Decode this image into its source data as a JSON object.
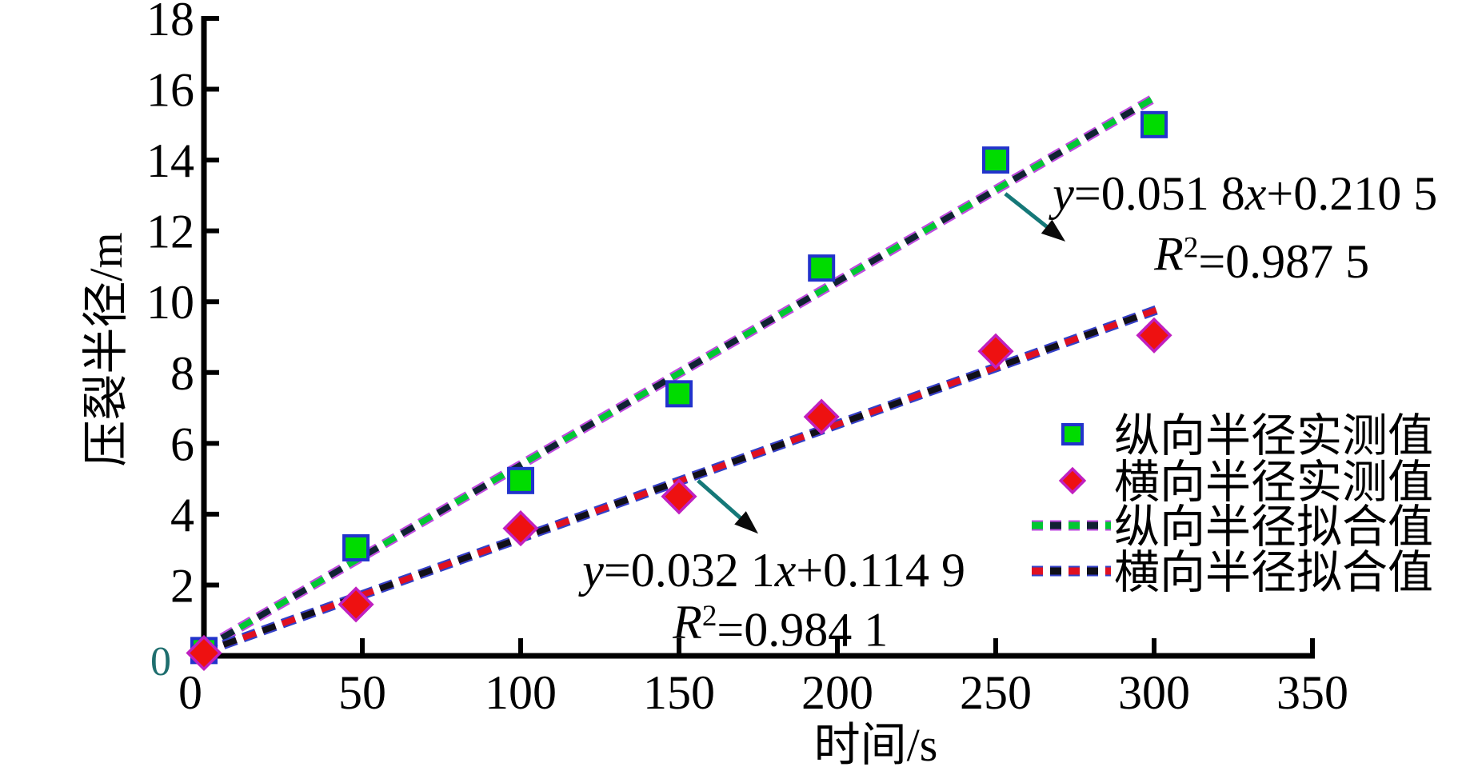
{
  "figure": {
    "background": "#ffffff",
    "axis_color": "#000000",
    "tick_label_color": "#000000",
    "y_zero_label_color": "#1e6e6e",
    "arrow_color": "#157878",
    "arrowhead_color": "#0a0a0a"
  },
  "chart_data": {
    "type": "scatter",
    "title": "",
    "xlabel": "时间/s",
    "ylabel": "压裂半径/m",
    "xlim": [
      0,
      350
    ],
    "ylim": [
      0,
      18
    ],
    "xticks": [
      0,
      50,
      100,
      150,
      200,
      250,
      300,
      350
    ],
    "yticks": [
      0,
      2,
      4,
      6,
      8,
      10,
      12,
      14,
      16,
      18
    ],
    "grid": false,
    "legend_position": "right-middle",
    "series": [
      {
        "id": "longitudinal-measured",
        "name": "纵向半径实测值",
        "kind": "scatter",
        "marker": "square",
        "fill": "#00dc00",
        "edge": "#2233cc",
        "points": [
          [
            0,
            0.15
          ],
          [
            48,
            3.05
          ],
          [
            100,
            4.95
          ],
          [
            150,
            7.4
          ],
          [
            195,
            10.95
          ],
          [
            250,
            14.0
          ],
          [
            300,
            15.0
          ]
        ]
      },
      {
        "id": "transverse-measured",
        "name": "横向半径实测值",
        "kind": "scatter",
        "marker": "diamond",
        "fill": "#ee1111",
        "edge": "#c020c0",
        "points": [
          [
            0,
            0.08
          ],
          [
            48,
            1.45
          ],
          [
            100,
            3.6
          ],
          [
            150,
            4.5
          ],
          [
            195,
            6.75
          ],
          [
            250,
            8.6
          ],
          [
            300,
            9.05
          ]
        ]
      },
      {
        "id": "longitudinal-fit",
        "name": "纵向半径拟合值",
        "kind": "fit-line",
        "color": "#00c832",
        "accent": "#112233",
        "halo": "#c04ae0",
        "slope": 0.0518,
        "intercept": 0.2105,
        "x_start": 0,
        "x_end": 300
      },
      {
        "id": "transverse-fit",
        "name": "横向半径拟合值",
        "kind": "fit-line",
        "color": "#e01020",
        "accent": "#101018",
        "halo": "#3340c8",
        "slope": 0.0321,
        "intercept": 0.1149,
        "x_start": 0,
        "x_end": 302
      }
    ],
    "annotations": [
      {
        "id": "1",
        "equation": "y=0.051 8x+0.210 5",
        "r_squared": "R²=0.987 5",
        "eq_anchor": {
          "x": 268,
          "y": 12.6,
          "align": "start"
        },
        "r2_anchor": {
          "x": 334,
          "y": 10.9,
          "align": "middle"
        },
        "arrow": {
          "x1": 253,
          "y1": 13.05,
          "x2": 272,
          "y2": 11.7
        }
      },
      {
        "id": "2",
        "equation": "y=0.032 1x+0.114 9",
        "r_squared": "R²=0.984 1",
        "eq_anchor": {
          "x": 119.5,
          "y": 1.97,
          "align": "start"
        },
        "r2_anchor": {
          "x": 182,
          "y": 0.5,
          "align": "middle"
        },
        "arrow": {
          "x1": 156,
          "y1": 4.95,
          "x2": 175,
          "y2": 3.45
        }
      }
    ]
  }
}
